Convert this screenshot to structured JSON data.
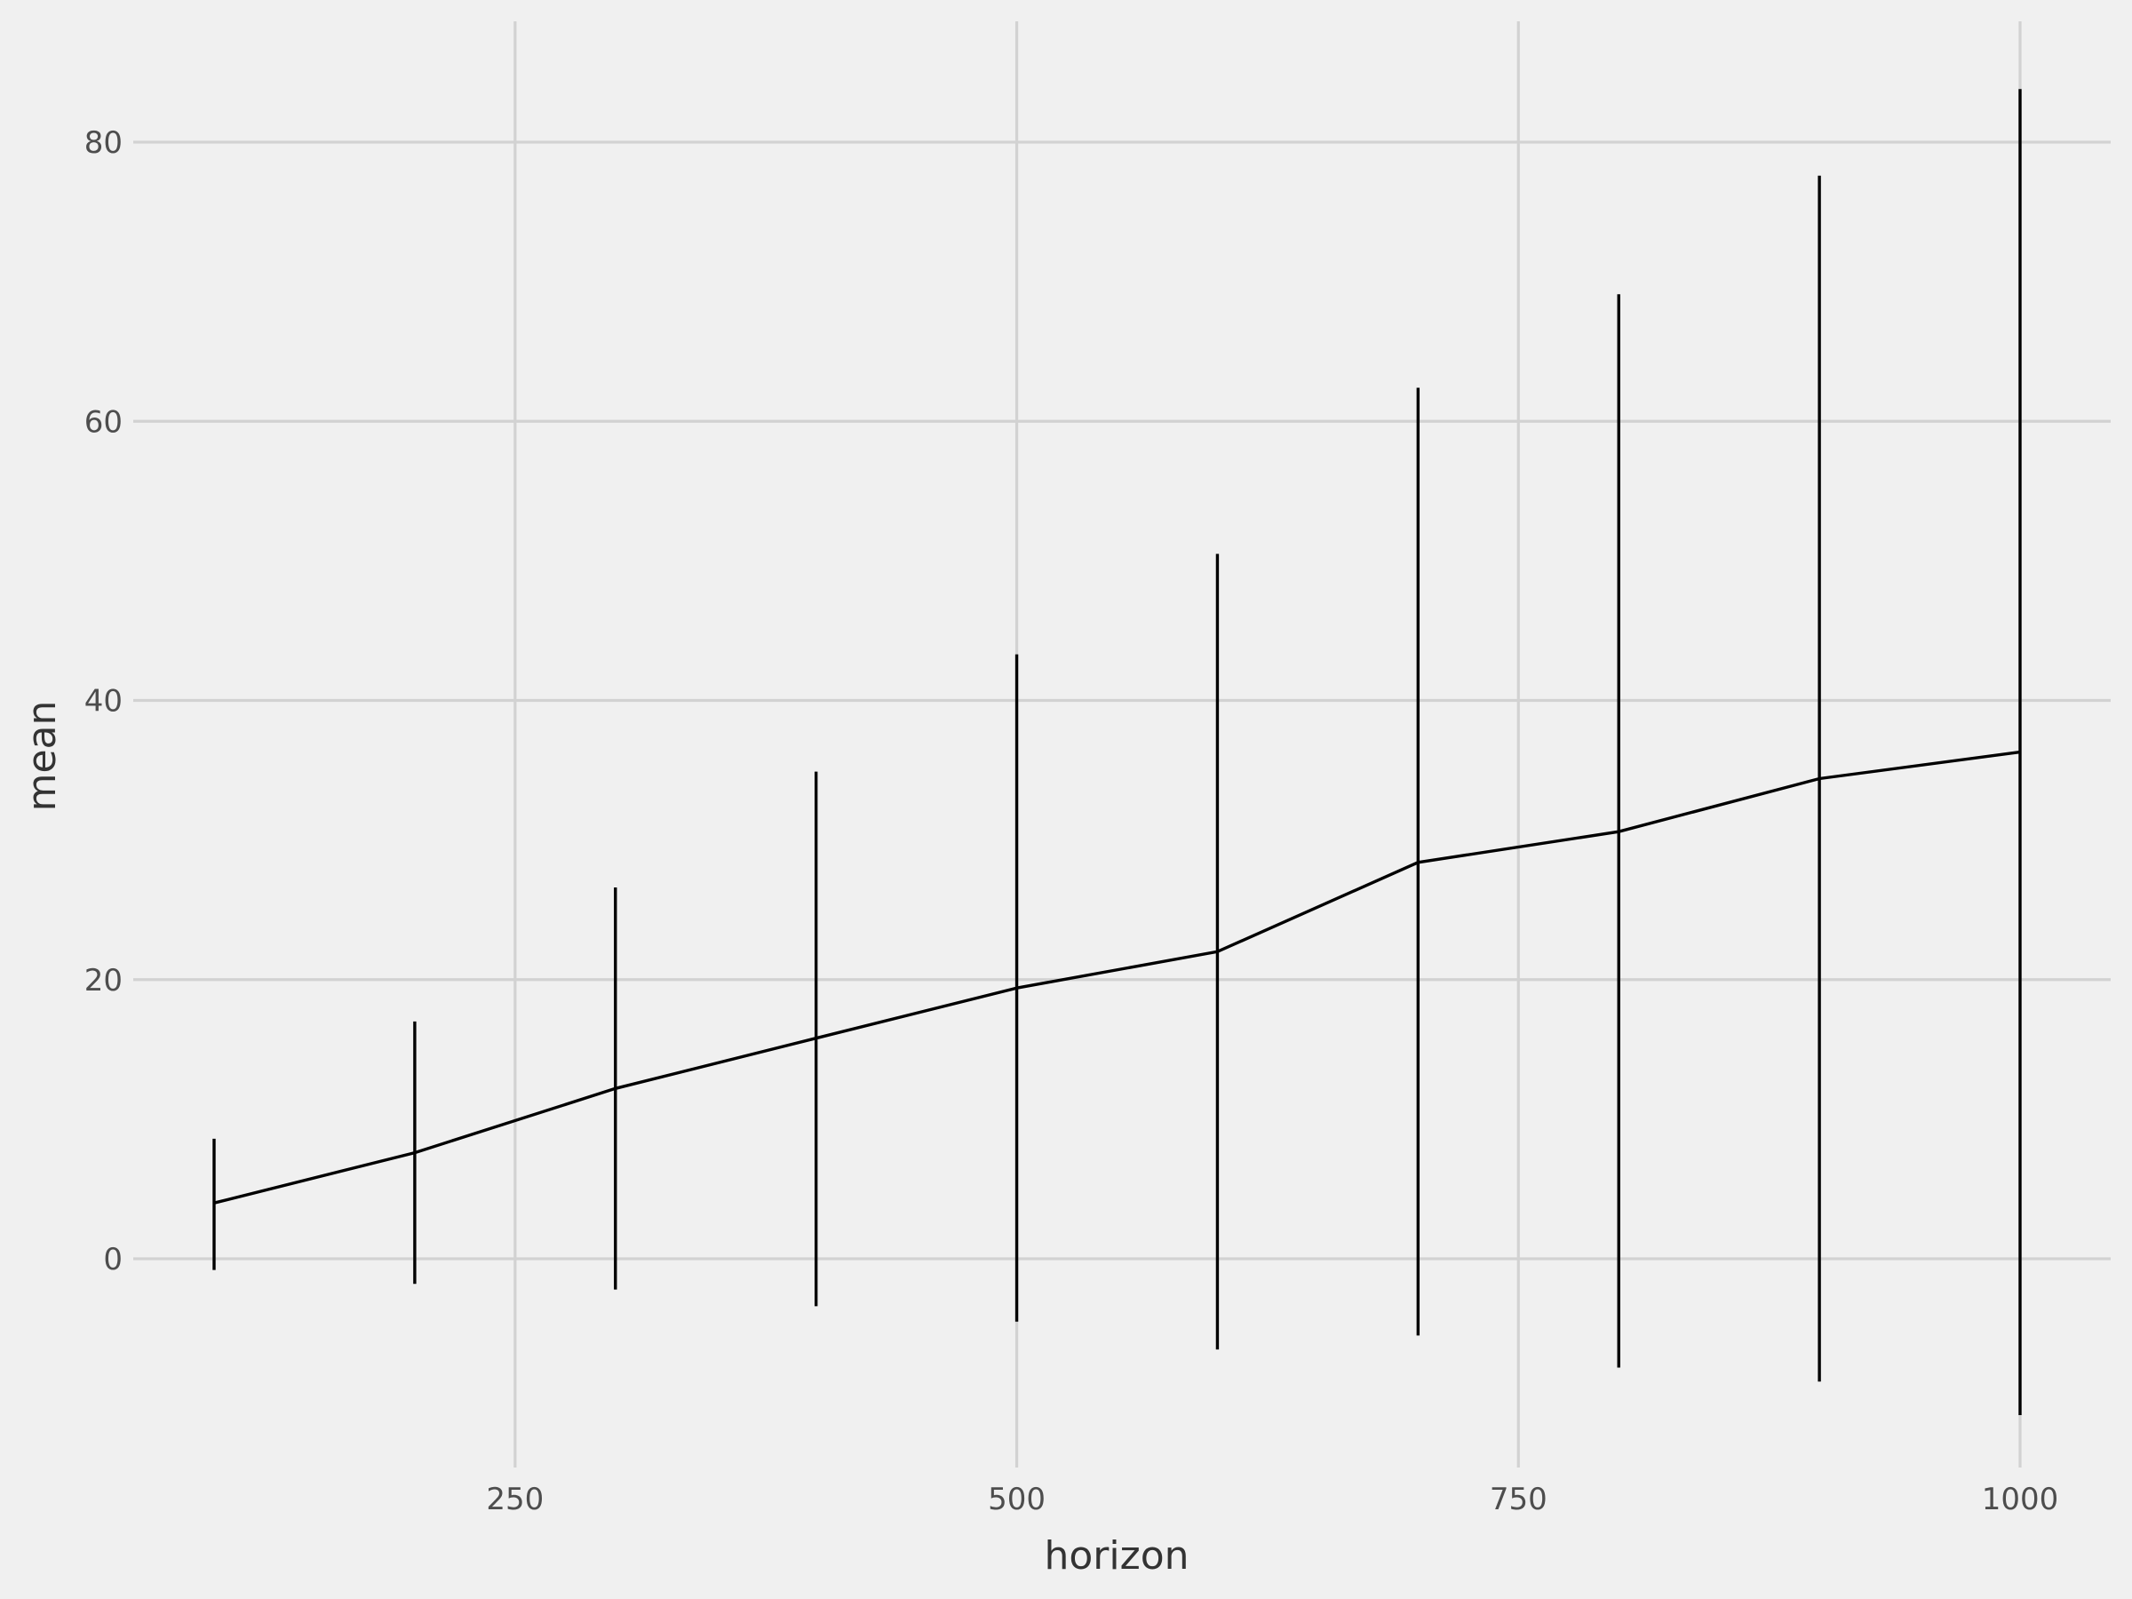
{
  "chart_data": {
    "type": "line",
    "xlabel": "horizon",
    "ylabel": "mean",
    "xlim": [
      50,
      1045
    ],
    "ylim": [
      -15,
      90
    ],
    "x_ticks": [
      250,
      500,
      750,
      1000
    ],
    "y_ticks": [
      0,
      20,
      40,
      60,
      80
    ],
    "grid": true,
    "background": "#f0f0f0",
    "grid_color": "#d2d2d2",
    "line_color": "#000000",
    "x": [
      100,
      200,
      300,
      400,
      500,
      600,
      700,
      800,
      900,
      1000
    ],
    "series": [
      {
        "values": [
          4.0,
          7.6,
          12.2,
          15.8,
          19.4,
          22.0,
          28.4,
          30.6,
          34.4,
          36.3
        ],
        "lower": [
          -0.8,
          -1.8,
          -2.2,
          -3.4,
          -4.5,
          -6.5,
          -5.5,
          -7.8,
          -8.8,
          -11.2
        ],
        "upper": [
          8.6,
          17.0,
          26.6,
          34.9,
          43.3,
          50.5,
          62.4,
          69.1,
          77.6,
          83.8
        ]
      }
    ]
  }
}
